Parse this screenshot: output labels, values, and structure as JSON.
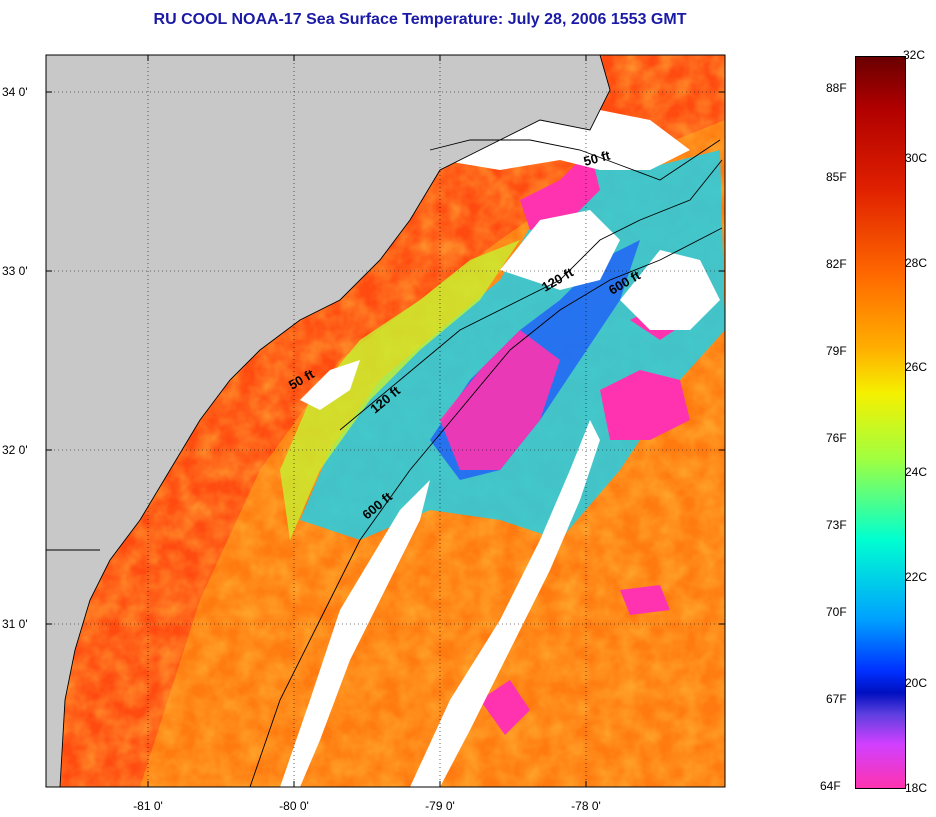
{
  "title": "RU COOL  NOAA-17  Sea Surface Temperature:  July 28, 2006 1553 GMT",
  "map": {
    "latitude_labels": [
      "34 0'",
      "33 0'",
      "32 0'",
      "31 0'"
    ],
    "longitude_labels": [
      "-81 0'",
      "-80 0'",
      "-79 0'",
      "-78 0'"
    ],
    "isobath_labels": [
      "50 ft",
      "120 ft",
      "600 ft",
      "50 ft",
      "120 ft",
      "600 ft"
    ]
  },
  "colorbar": {
    "fahrenheit_labels": [
      "88F",
      "85F",
      "82F",
      "79F",
      "76F",
      "73F",
      "70F",
      "67F",
      "64F"
    ],
    "celsius_labels": [
      "32C",
      "30C",
      "28C",
      "26C",
      "24C",
      "22C",
      "20C",
      "18C"
    ]
  },
  "colors": {
    "title": "#1a1aa6",
    "land": "#c8c8c8",
    "warm": "#ff4a10",
    "cool": "#22cfe8",
    "cold": "#ff33b0",
    "cloud": "#ffffff"
  }
}
